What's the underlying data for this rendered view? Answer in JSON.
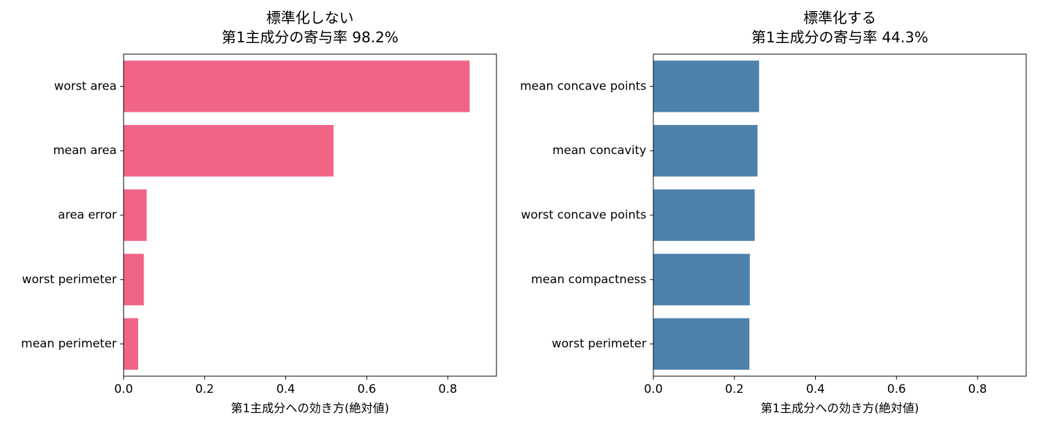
{
  "chart_data": [
    {
      "type": "barh",
      "title_lines": [
        "標準化しない",
        "第1主成分の寄与率 98.2%"
      ],
      "categories": [
        "worst area",
        "mean area",
        "area error",
        "worst perimeter",
        "mean perimeter"
      ],
      "values": [
        0.854,
        0.518,
        0.057,
        0.05,
        0.036
      ],
      "color": "#f06585",
      "xlabel": "第1主成分への効き方(絶対値)",
      "xlim": [
        0,
        0.92
      ],
      "xticks": [
        {
          "value": 0,
          "label": "0.0"
        },
        0.2,
        0.4,
        0.6,
        0.8
      ]
    },
    {
      "type": "barh",
      "title_lines": [
        "標準化する",
        "第1主成分の寄与率 44.3%"
      ],
      "categories": [
        "mean concave points",
        "mean concavity",
        "worst concave points",
        "mean compactness",
        "worst perimeter"
      ],
      "values": [
        0.261,
        0.257,
        0.25,
        0.238,
        0.237
      ],
      "color": "#4e82ab",
      "xlabel": "第1主成分への効き方(絶対値)",
      "xlim": [
        0,
        0.92
      ],
      "xticks": [
        {
          "value": 0,
          "label": "0.0"
        },
        0.2,
        0.4,
        0.6,
        0.8
      ]
    }
  ]
}
